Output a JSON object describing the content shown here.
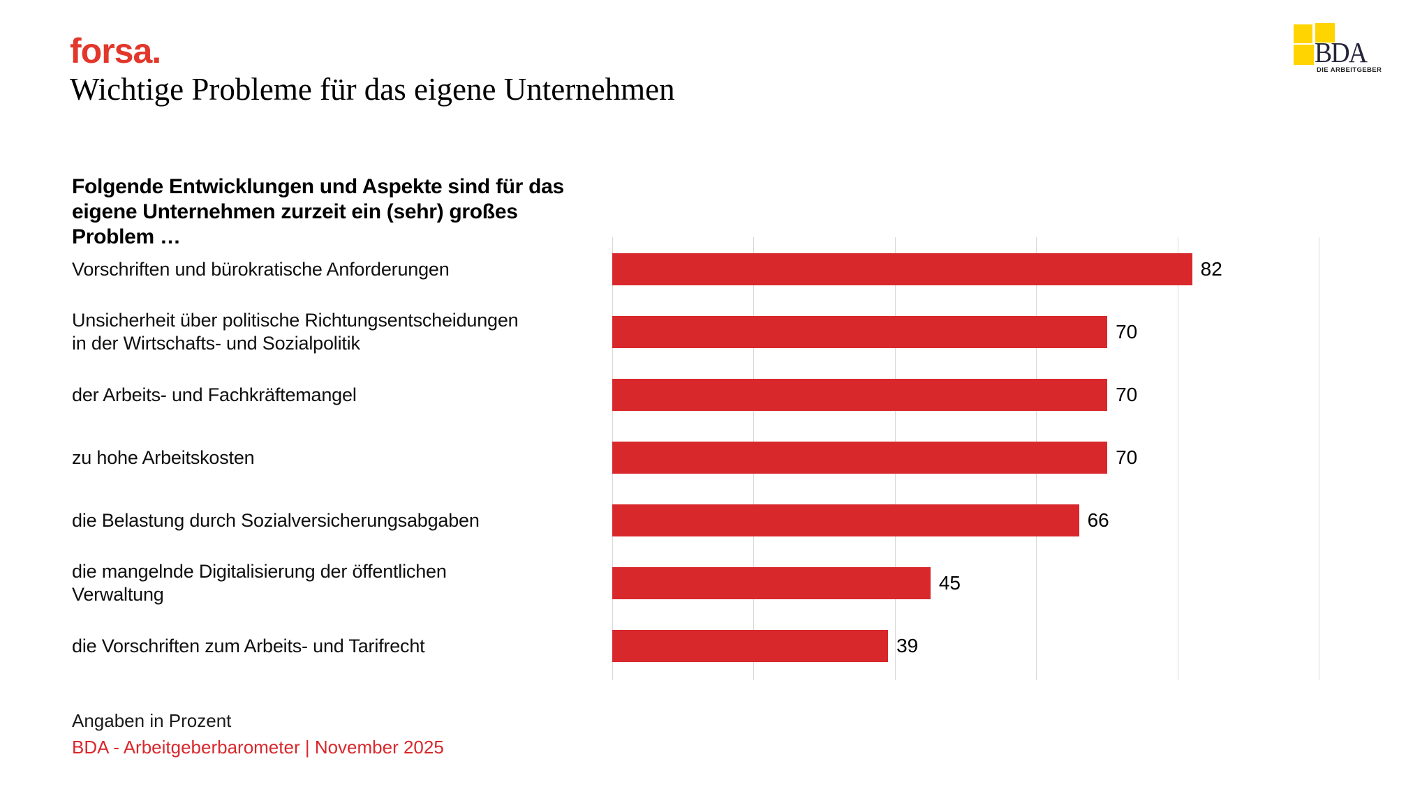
{
  "brand": {
    "forsa_logo_text": "forsa.",
    "forsa_red": "#e2372b"
  },
  "header": {
    "title": "Wichtige Probleme für das eigene Unternehmen"
  },
  "bda_logo": {
    "wordmark": "BDA",
    "subtext": "DIE ARBEITGEBER",
    "yellow": "#ffd400"
  },
  "intro": "Folgende Entwicklungen und Aspekte sind für das\neigene Unternehmen zurzeit ein (sehr) großes\nProblem …",
  "chart_data": {
    "type": "bar",
    "orientation": "horizontal",
    "title": "Wichtige Probleme für das eigene Unternehmen",
    "subtitle": "Folgende Entwicklungen und Aspekte sind für das eigene Unternehmen zurzeit ein (sehr) großes Problem …",
    "unit": "Prozent",
    "bar_color": "#d8282c",
    "grid_color": "#d8d8d8",
    "xlim": [
      0,
      100
    ],
    "gridlines_at": [
      0,
      20,
      40,
      60,
      80,
      100
    ],
    "grid_on": true,
    "categories": [
      "Vorschriften und bürokratische Anforderungen",
      "Unsicherheit über politische Richtungsentscheidungen\nin der Wirtschafts- und Sozialpolitik",
      "der Arbeits- und Fachkräftemangel",
      "zu hohe Arbeitskosten",
      "die Belastung durch Sozialversicherungsabgaben",
      "die mangelnde Digitalisierung der öffentlichen\nVerwaltung",
      "die Vorschriften zum Arbeits- und Tarifrecht"
    ],
    "values": [
      82,
      70,
      70,
      70,
      66,
      45,
      39
    ]
  },
  "footer": {
    "note": "Angaben in Prozent",
    "source": "BDA - Arbeitgeberbarometer  | November 2025"
  }
}
